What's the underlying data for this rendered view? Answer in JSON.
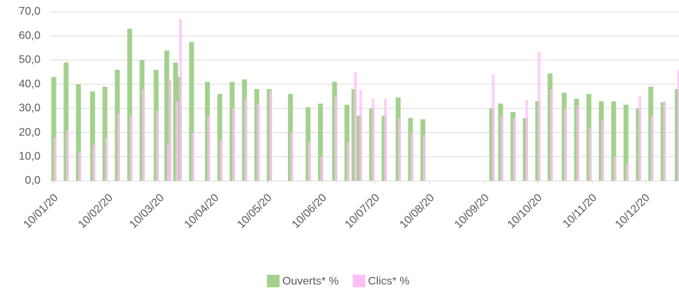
{
  "chart_data": {
    "type": "bar",
    "x": [
      "10/01/20",
      "17/01/20",
      "24/01/20",
      "01/02/20",
      "08/02/20",
      "15/02/20",
      "22/02/20",
      "29/02/20",
      "08/03/20",
      "14/03/20",
      "15/03/20",
      "19/03/20",
      "21/03/20",
      "28/03/20",
      "06/04/20",
      "13/04/20",
      "20/04/20",
      "27/04/20",
      "04/05/20",
      "11/05/20",
      "23/05/20",
      "02/06/20",
      "09/06/20",
      "17/06/20",
      "24/06/20",
      "28/06/20",
      "01/07/20",
      "08/07/20",
      "15/07/20",
      "23/07/20",
      "30/07/20",
      "06/08/20",
      "14/09/20",
      "19/09/20",
      "26/09/20",
      "03/10/20",
      "10/10/20",
      "17/10/20",
      "25/10/20",
      "01/11/20",
      "08/11/20",
      "15/11/20",
      "22/11/20",
      "29/11/20",
      "06/12/20",
      "13/12/20",
      "20/12/20",
      "28/12/20"
    ],
    "series": [
      {
        "name": "Ouverts* %",
        "color": "#a3d18d",
        "values": [
          43,
          49,
          40,
          37,
          39,
          46,
          63,
          50,
          46,
          54,
          41.5,
          49,
          43,
          57.5,
          41,
          36,
          41,
          42,
          38,
          38,
          36,
          30.5,
          32,
          41,
          31.5,
          38,
          27,
          30,
          27,
          34.5,
          26,
          25.5,
          30,
          32,
          28.5,
          26,
          33,
          44.5,
          36.5,
          34,
          36,
          33,
          33,
          31.5,
          30,
          39,
          32.5,
          38
        ]
      },
      {
        "name": "Clics* %",
        "color": "#fdbff6",
        "values": [
          18,
          21,
          12,
          15,
          18,
          28,
          27,
          38,
          29,
          15,
          42,
          33,
          67,
          20,
          27,
          17,
          30,
          34,
          32,
          37,
          20,
          16,
          10,
          35,
          16,
          45,
          37.5,
          34,
          34,
          26,
          20,
          19,
          44,
          27,
          26,
          33.5,
          53.5,
          38,
          30,
          31,
          22,
          25,
          10,
          7,
          35,
          27,
          33,
          46
        ]
      }
    ],
    "xlim": [
      "08/01/20",
      "29/12/20"
    ],
    "xticks": [
      "10/01/20",
      "10/02/20",
      "10/03/20",
      "10/04/20",
      "10/05/20",
      "10/06/20",
      "10/07/20",
      "10/08/20",
      "10/09/20",
      "10/10/20",
      "10/11/20",
      "10/12/20"
    ],
    "ylim": [
      0,
      70
    ],
    "yticks": [
      {
        "value": 0,
        "label": "0,0"
      },
      {
        "value": 10,
        "label": "10,0"
      },
      {
        "value": 20,
        "label": "20,0"
      },
      {
        "value": 30,
        "label": "30,0"
      },
      {
        "value": 40,
        "label": "40,0"
      },
      {
        "value": 50,
        "label": "50,0"
      },
      {
        "value": 60,
        "label": "60,0"
      },
      {
        "value": 70,
        "label": "70,0"
      }
    ],
    "grid": true,
    "legend": "bottom"
  }
}
